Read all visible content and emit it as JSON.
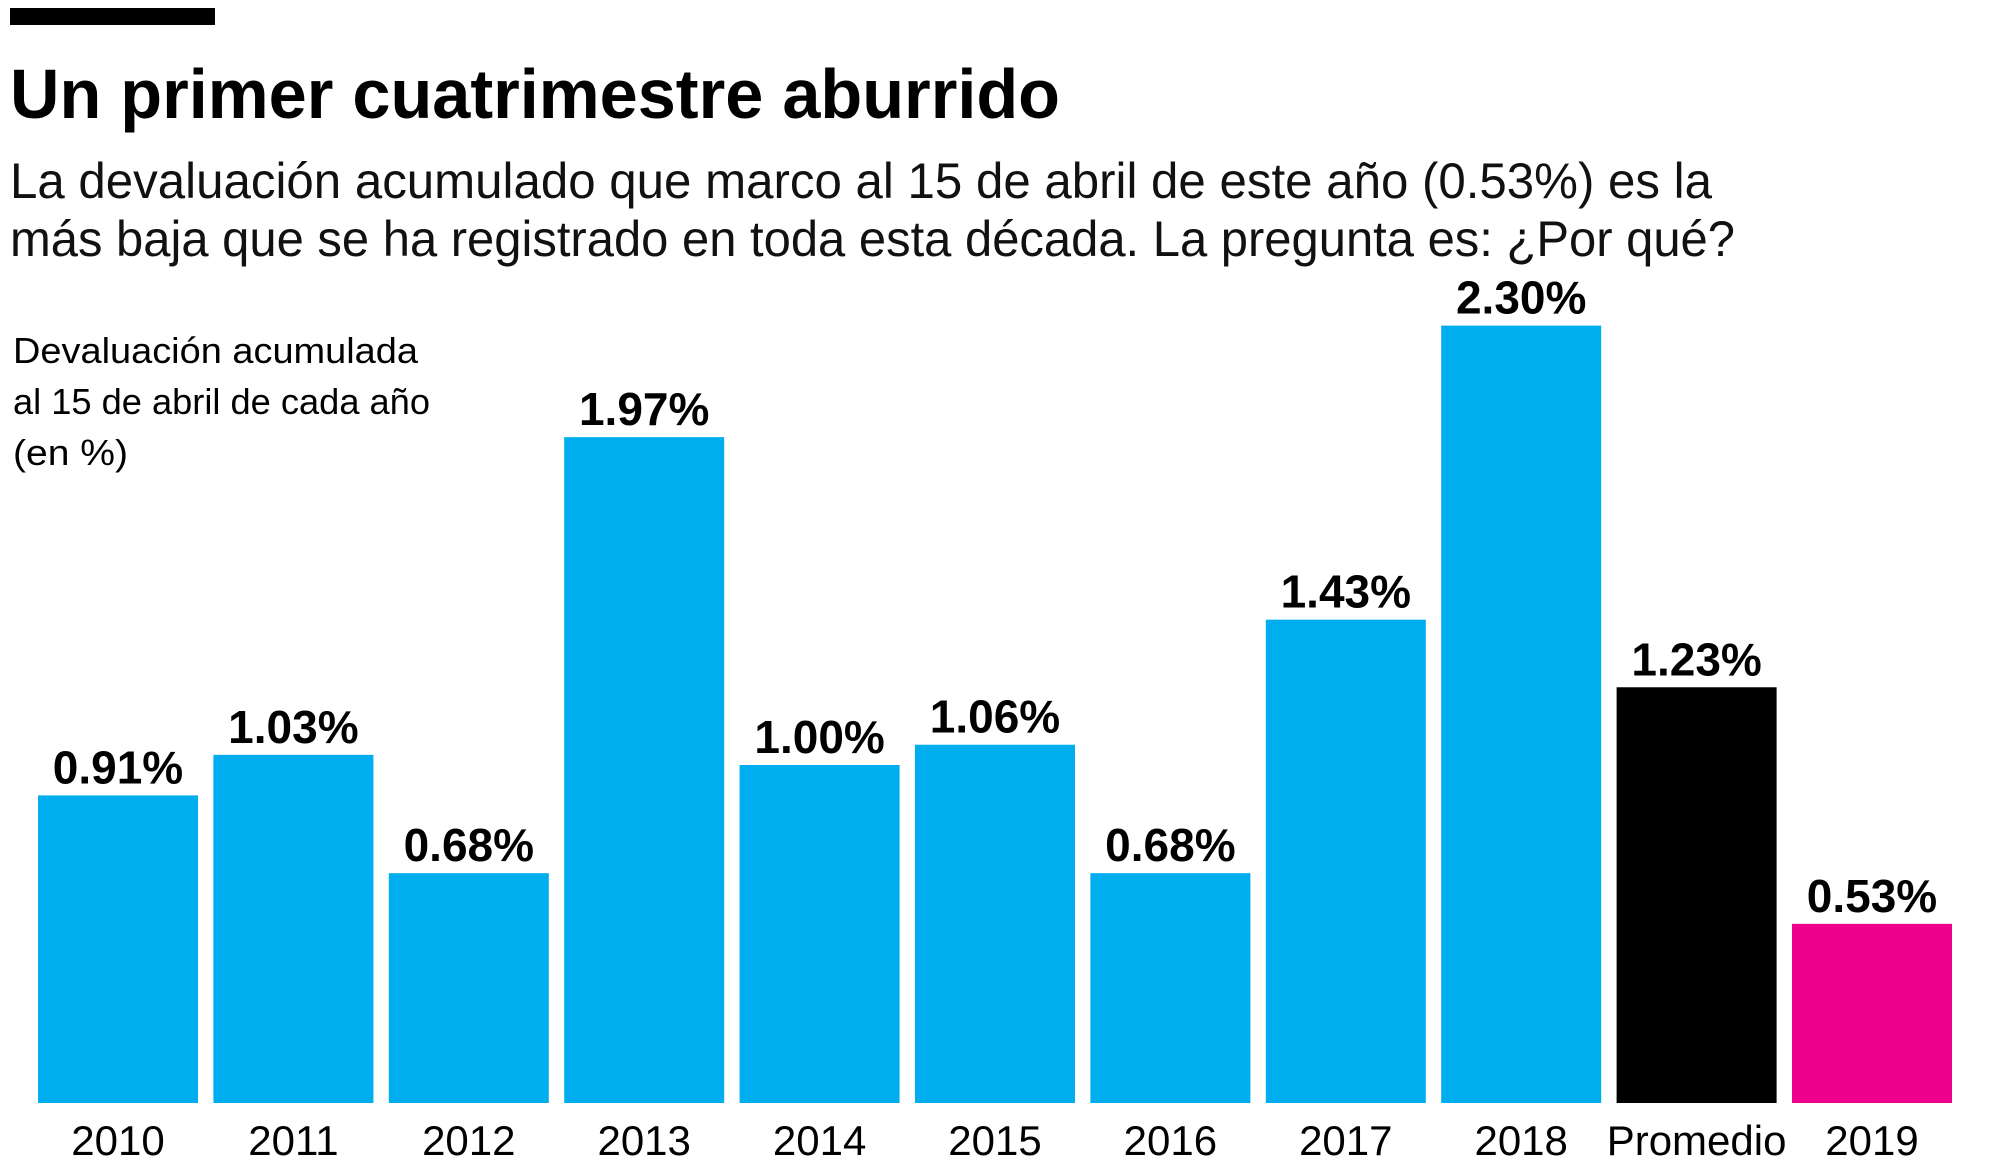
{
  "chart_data": {
    "type": "bar",
    "title": "Un primer cuatrimestre aburrido",
    "subtitle": [
      "La devaluación acumulado que marco al 15 de abril de este año (0.53%) es la",
      "más baja que se ha registrado en toda esta década. La pregunta es: ¿Por qué?"
    ],
    "ylabel": [
      "Devaluación acumulada",
      "al 15 de abril de cada año",
      "(en %)"
    ],
    "categories": [
      "2010",
      "2011",
      "2012",
      "2013",
      "2014",
      "2015",
      "2016",
      "2017",
      "2018",
      "Promedio",
      "2019"
    ],
    "values": [
      0.91,
      1.03,
      0.68,
      1.97,
      1.0,
      1.06,
      0.68,
      1.43,
      2.3,
      1.23,
      0.53
    ],
    "value_labels": [
      "0.91%",
      "1.03%",
      "0.68%",
      "1.97%",
      "1.00%",
      "1.06%",
      "0.68%",
      "1.43%",
      "2.30%",
      "1.23%",
      "0.53%"
    ],
    "colors": [
      "#00aeef",
      "#00aeef",
      "#00aeef",
      "#00aeef",
      "#00aeef",
      "#00aeef",
      "#00aeef",
      "#00aeef",
      "#00aeef",
      "#000000",
      "#ec008c"
    ],
    "ylim": [
      0,
      2.3
    ],
    "grid": false,
    "legend": "none"
  }
}
